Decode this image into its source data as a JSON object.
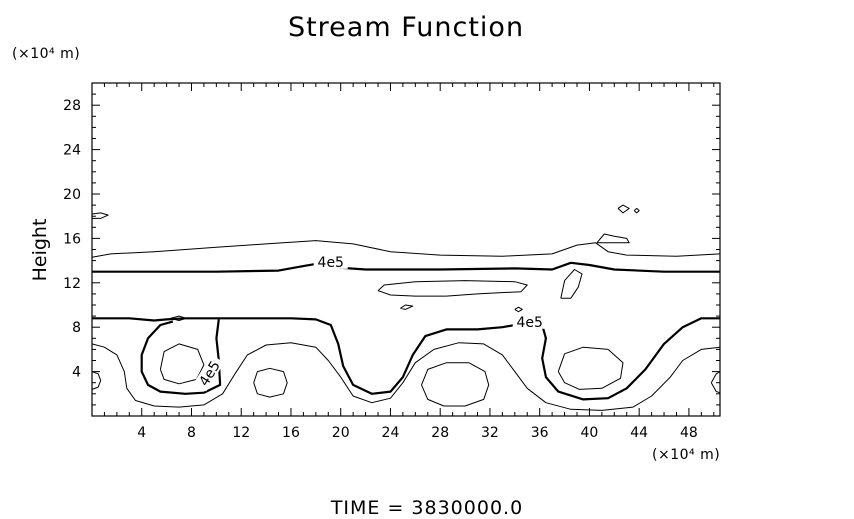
{
  "chart_data": {
    "type": "contour",
    "title": "Stream Function",
    "ylabel": "Height",
    "y_unit": "(×10⁴ m)",
    "x_unit": "(×10⁴ m)",
    "xlim": [
      0,
      50.5
    ],
    "ylim": [
      0,
      30
    ],
    "x_ticks": [
      4,
      8,
      12,
      16,
      20,
      24,
      28,
      32,
      36,
      40,
      44,
      48
    ],
    "y_ticks": [
      4,
      8,
      12,
      16,
      20,
      24,
      28
    ],
    "contour_labels": [
      "4e5",
      "4e5",
      "4e5"
    ],
    "contours": [
      {
        "level": "4e5",
        "style": "thick",
        "points": [
          [
            0,
            13
          ],
          [
            5,
            13
          ],
          [
            10,
            13
          ],
          [
            15,
            13.1
          ],
          [
            17,
            13.5
          ],
          [
            18,
            13.7
          ],
          [
            19.5,
            13.4
          ],
          [
            22,
            13.2
          ],
          [
            28,
            13.2
          ],
          [
            34,
            13.3
          ],
          [
            37,
            13.2
          ],
          [
            38.5,
            13.8
          ],
          [
            40,
            13.6
          ],
          [
            42,
            13.2
          ],
          [
            46,
            13
          ],
          [
            50.5,
            13
          ]
        ]
      },
      {
        "level": "4e5",
        "style": "thick",
        "points": [
          [
            0,
            8.8
          ],
          [
            3,
            8.8
          ],
          [
            5,
            8.6
          ],
          [
            6,
            8.7
          ],
          [
            7.5,
            8.8
          ],
          [
            9,
            8.8
          ],
          [
            10.5,
            8.8
          ],
          [
            13,
            8.8
          ],
          [
            16,
            8.8
          ],
          [
            18,
            8.7
          ],
          [
            19.2,
            8.2
          ],
          [
            19.8,
            6.5
          ],
          [
            20.2,
            4.5
          ],
          [
            21,
            2.8
          ],
          [
            22.5,
            2
          ],
          [
            24,
            2.2
          ],
          [
            25,
            3.5
          ],
          [
            25.8,
            5.5
          ],
          [
            26.8,
            7.2
          ],
          [
            28.5,
            7.8
          ],
          [
            31,
            7.8
          ],
          [
            33,
            8
          ],
          [
            35,
            8.4
          ],
          [
            36.2,
            8.2
          ],
          [
            36.5,
            7
          ],
          [
            36.2,
            5.2
          ],
          [
            36.5,
            3.5
          ],
          [
            37.5,
            2.2
          ],
          [
            39.5,
            1.5
          ],
          [
            41.5,
            1.6
          ],
          [
            43,
            2.5
          ],
          [
            44.5,
            4.2
          ],
          [
            46,
            6.5
          ],
          [
            47.5,
            8
          ],
          [
            49,
            8.8
          ],
          [
            50.5,
            8.8
          ]
        ]
      },
      {
        "level": "4e5",
        "style": "thick",
        "points": [
          [
            6.5,
            8.5
          ],
          [
            5.5,
            8.2
          ],
          [
            4.5,
            7
          ],
          [
            4,
            5.5
          ],
          [
            4,
            4
          ],
          [
            4.5,
            2.8
          ],
          [
            5.5,
            2.2
          ],
          [
            7.5,
            2
          ],
          [
            9,
            2.1
          ],
          [
            10.3,
            2.8
          ],
          [
            10.2,
            5
          ],
          [
            10,
            7
          ],
          [
            10.2,
            8.7
          ]
        ]
      },
      {
        "level": "thin",
        "style": "thin",
        "points": [
          [
            0,
            14.3
          ],
          [
            1.5,
            14.6
          ],
          [
            5,
            14.8
          ],
          [
            10,
            15.2
          ],
          [
            14,
            15.5
          ],
          [
            18,
            15.8
          ],
          [
            21,
            15.5
          ],
          [
            24,
            14.8
          ],
          [
            28,
            14.5
          ],
          [
            33,
            14.4
          ],
          [
            37,
            14.6
          ],
          [
            39,
            15.4
          ],
          [
            40.5,
            15.6
          ],
          [
            41.5,
            14.8
          ],
          [
            43,
            14.5
          ],
          [
            47,
            14.4
          ],
          [
            50.5,
            14.6
          ]
        ]
      },
      {
        "level": "thin",
        "style": "thin",
        "points": [
          [
            0,
            6.5
          ],
          [
            1,
            6.2
          ],
          [
            2,
            5.5
          ],
          [
            2.6,
            4
          ],
          [
            2.8,
            2.5
          ],
          [
            3.5,
            1.4
          ],
          [
            5,
            0.9
          ],
          [
            7,
            0.8
          ],
          [
            9,
            1
          ],
          [
            10.5,
            2
          ],
          [
            11.5,
            3.8
          ],
          [
            12.5,
            5.5
          ],
          [
            14,
            6.4
          ],
          [
            16,
            6.6
          ],
          [
            18,
            6.2
          ],
          [
            19,
            5
          ],
          [
            20,
            3.5
          ],
          [
            21,
            1.8
          ],
          [
            22.5,
            1.2
          ],
          [
            24,
            1.6
          ],
          [
            25,
            3
          ],
          [
            26,
            4.8
          ],
          [
            27.5,
            6
          ],
          [
            29.5,
            6.6
          ],
          [
            31.5,
            6.5
          ],
          [
            33,
            5.5
          ],
          [
            34,
            4
          ],
          [
            35,
            2.5
          ],
          [
            36.5,
            1.2
          ],
          [
            38.5,
            0.6
          ],
          [
            41,
            0.5
          ],
          [
            43.5,
            0.8
          ],
          [
            45,
            1.8
          ],
          [
            46.5,
            3.5
          ],
          [
            47.5,
            5
          ],
          [
            49,
            6
          ],
          [
            50.5,
            6.2
          ]
        ]
      },
      {
        "level": "thin",
        "style": "closed",
        "points": [
          [
            5.5,
            4.2
          ],
          [
            5.8,
            5.8
          ],
          [
            7,
            6.5
          ],
          [
            8.5,
            6
          ],
          [
            9,
            4.6
          ],
          [
            8.4,
            3.3
          ],
          [
            7,
            2.9
          ],
          [
            5.8,
            3.3
          ],
          [
            5.5,
            4.2
          ]
        ]
      },
      {
        "level": "thin",
        "style": "closed",
        "points": [
          [
            13,
            3
          ],
          [
            13.3,
            4
          ],
          [
            14.3,
            4.3
          ],
          [
            15.4,
            4
          ],
          [
            15.7,
            3
          ],
          [
            15.4,
            2
          ],
          [
            14.3,
            1.7
          ],
          [
            13.3,
            2
          ],
          [
            13,
            3
          ]
        ]
      },
      {
        "level": "thin",
        "style": "closed",
        "points": [
          [
            26.5,
            2.8
          ],
          [
            27,
            4.2
          ],
          [
            28.5,
            4.8
          ],
          [
            30.3,
            4.8
          ],
          [
            31.6,
            4
          ],
          [
            31.9,
            2.8
          ],
          [
            31.5,
            1.5
          ],
          [
            30,
            0.9
          ],
          [
            28.3,
            0.9
          ],
          [
            27,
            1.5
          ],
          [
            26.5,
            2.8
          ]
        ]
      },
      {
        "level": "thin",
        "style": "closed",
        "points": [
          [
            37.5,
            4
          ],
          [
            38,
            5.6
          ],
          [
            39.5,
            6.2
          ],
          [
            41.5,
            6
          ],
          [
            42.7,
            4.8
          ],
          [
            42.5,
            3.4
          ],
          [
            41,
            2.5
          ],
          [
            39.2,
            2.4
          ],
          [
            38,
            3
          ],
          [
            37.5,
            4
          ]
        ]
      },
      {
        "level": "thin",
        "style": "closed",
        "points": [
          [
            49.8,
            3
          ],
          [
            50.2,
            2.2
          ],
          [
            50.5,
            2.1
          ],
          [
            50.5,
            4
          ],
          [
            50.2,
            3.8
          ],
          [
            49.8,
            3
          ]
        ]
      },
      {
        "level": "thin",
        "style": "closed",
        "points": [
          [
            0,
            2.4
          ],
          [
            0.5,
            2.6
          ],
          [
            0.7,
            3.2
          ],
          [
            0.5,
            3.8
          ],
          [
            0,
            4
          ]
        ]
      },
      {
        "level": "thin",
        "style": "closed",
        "points": [
          [
            23,
            11.3
          ],
          [
            23.5,
            11.8
          ],
          [
            26,
            12.1
          ],
          [
            30,
            12.2
          ],
          [
            34,
            12.1
          ],
          [
            35,
            11.8
          ],
          [
            34.5,
            11.2
          ],
          [
            31,
            11
          ],
          [
            28.5,
            10.8
          ],
          [
            26,
            10.8
          ],
          [
            24,
            10.9
          ],
          [
            23,
            11.3
          ]
        ]
      },
      {
        "level": "thin",
        "style": "closed",
        "points": [
          [
            37.7,
            10.6
          ],
          [
            38,
            12.2
          ],
          [
            38.8,
            13.2
          ],
          [
            39.4,
            12.8
          ],
          [
            39.1,
            11.6
          ],
          [
            38.5,
            10.6
          ],
          [
            37.7,
            10.6
          ]
        ]
      },
      {
        "level": "thin",
        "style": "closed",
        "points": [
          [
            0,
            18.2
          ],
          [
            0.7,
            18.3
          ],
          [
            1.3,
            18.1
          ],
          [
            0.7,
            17.8
          ],
          [
            0,
            17.8
          ]
        ]
      },
      {
        "level": "thin",
        "style": "closed",
        "points": [
          [
            42.3,
            18.7
          ],
          [
            42.7,
            19
          ],
          [
            43.2,
            18.7
          ],
          [
            42.7,
            18.3
          ],
          [
            42.3,
            18.7
          ]
        ]
      },
      {
        "level": "thin",
        "style": "closed",
        "points": [
          [
            43.6,
            18.5
          ],
          [
            43.8,
            18.7
          ],
          [
            44,
            18.5
          ],
          [
            43.8,
            18.3
          ],
          [
            43.6,
            18.5
          ]
        ]
      },
      {
        "level": "thin",
        "style": "closed",
        "points": [
          [
            40.6,
            15.6
          ],
          [
            41.2,
            16.4
          ],
          [
            42,
            16.2
          ],
          [
            43,
            16
          ],
          [
            43.2,
            15.6
          ],
          [
            42,
            15.6
          ],
          [
            40.6,
            15.6
          ]
        ]
      },
      {
        "level": "thin",
        "style": "closed",
        "points": [
          [
            24.8,
            9.7
          ],
          [
            25.2,
            10
          ],
          [
            25.8,
            9.9
          ],
          [
            25.2,
            9.6
          ],
          [
            24.8,
            9.7
          ]
        ]
      },
      {
        "level": "thin",
        "style": "closed",
        "points": [
          [
            6.3,
            8.8
          ],
          [
            7,
            9
          ],
          [
            7.6,
            8.8
          ],
          [
            7,
            8.6
          ],
          [
            6.3,
            8.8
          ]
        ]
      },
      {
        "level": "thin",
        "style": "closed",
        "points": [
          [
            34,
            9.6
          ],
          [
            34.3,
            9.8
          ],
          [
            34.6,
            9.6
          ],
          [
            34.3,
            9.4
          ],
          [
            34,
            9.6
          ]
        ]
      }
    ]
  },
  "footer": "TIME  =  3830000.0"
}
